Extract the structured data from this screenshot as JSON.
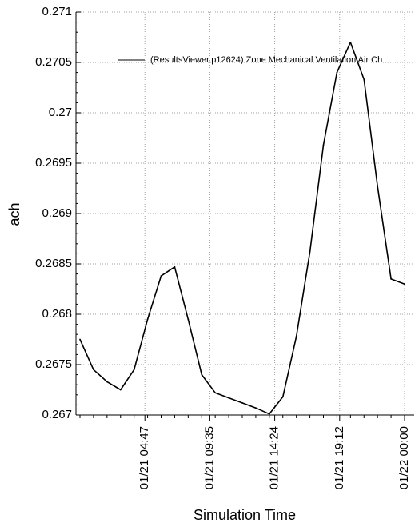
{
  "chart_data": {
    "type": "line",
    "xlabel": "Simulation Time",
    "ylabel": "ach",
    "ylim": [
      0.267,
      0.271
    ],
    "yticks": [
      "0.267",
      "0.2675",
      "0.268",
      "0.2685",
      "0.269",
      "0.2695",
      "0.27",
      "0.2705",
      "0.271"
    ],
    "xticks": [
      "01/21 04:47",
      "01/21 09:35",
      "01/21 14:24",
      "01/21 19:12",
      "01/22 00:00"
    ],
    "xlim_hours": [
      0,
      24
    ],
    "grid": true,
    "legend_position": "top-right",
    "series": [
      {
        "name": "(ResultsViewer.p12624) Zone Mechanical Ventilation Air Ch",
        "color": "#000000",
        "x": [
          0,
          1,
          2,
          3,
          4,
          5,
          6,
          7,
          8,
          9,
          10,
          11,
          12,
          13,
          14,
          15,
          16,
          17,
          18,
          19,
          20,
          21,
          22,
          23,
          24
        ],
        "values": [
          0.26775,
          0.26745,
          0.26733,
          0.26725,
          0.26745,
          0.26795,
          0.26838,
          0.26847,
          0.26795,
          0.2674,
          0.26722,
          0.26717,
          0.26712,
          0.26707,
          0.26701,
          0.26718,
          0.26778,
          0.26862,
          0.26968,
          0.2704,
          0.2707,
          0.27033,
          0.26927,
          0.26835,
          0.2683
        ]
      }
    ]
  }
}
